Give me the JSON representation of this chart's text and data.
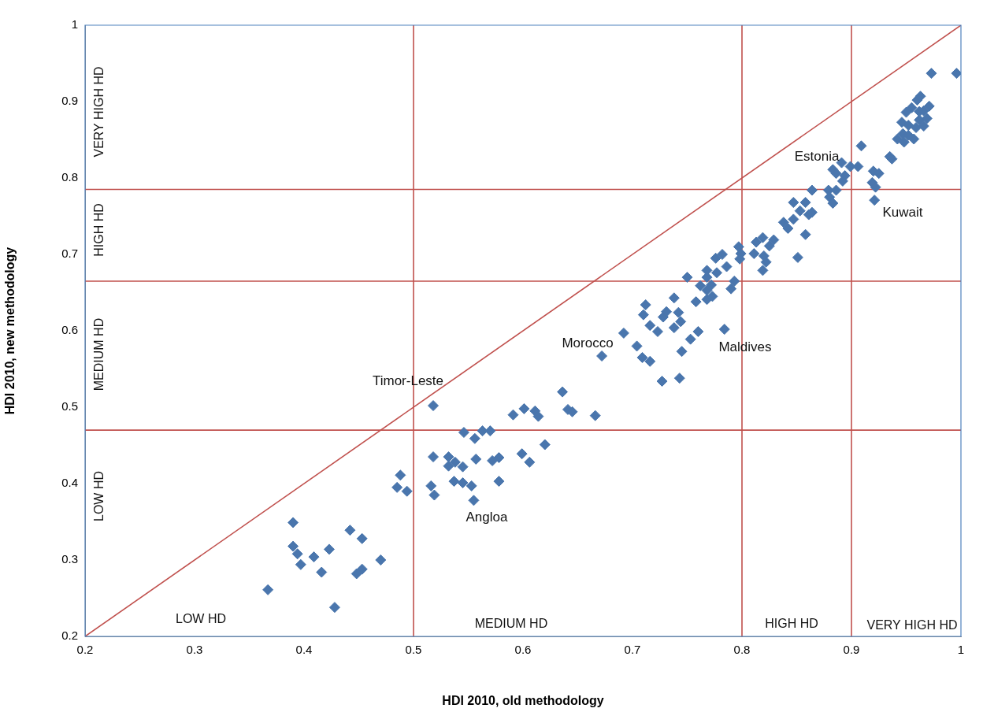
{
  "chart_data": {
    "type": "scatter",
    "xlabel": "HDI 2010, old methodology",
    "ylabel": "HDI 2010, new methodology",
    "xlim": [
      0.2,
      1
    ],
    "ylim": [
      0.2,
      1
    ],
    "xticks": [
      0.2,
      0.3,
      0.4,
      0.5,
      0.6,
      0.7,
      0.8,
      0.9,
      1
    ],
    "yticks": [
      0.2,
      0.3,
      0.4,
      0.5,
      0.6,
      0.7,
      0.8,
      0.9,
      1
    ],
    "grid": false,
    "legend": false,
    "series": [
      {
        "marker": "diamond",
        "color": "#4a76ad",
        "x": [
          0.367,
          0.39,
          0.39,
          0.394,
          0.397,
          0.409,
          0.416,
          0.423,
          0.428,
          0.442,
          0.453,
          0.448,
          0.453,
          0.47,
          0.488,
          0.485,
          0.494,
          0.518,
          0.601,
          0.591,
          0.611,
          0.614,
          0.636,
          0.641,
          0.645,
          0.666,
          0.672,
          0.546,
          0.556,
          0.563,
          0.57,
          0.62,
          0.599,
          0.606,
          0.518,
          0.532,
          0.532,
          0.538,
          0.545,
          0.557,
          0.572,
          0.578,
          0.516,
          0.519,
          0.537,
          0.545,
          0.553,
          0.578,
          0.555,
          0.692,
          0.704,
          0.709,
          0.716,
          0.727,
          0.743,
          0.745,
          0.753,
          0.76,
          0.784,
          0.712,
          0.71,
          0.716,
          0.723,
          0.728,
          0.731,
          0.738,
          0.742,
          0.744,
          0.738,
          0.758,
          0.75,
          0.762,
          0.768,
          0.768,
          0.773,
          0.772,
          0.768,
          0.768,
          0.777,
          0.776,
          0.782,
          0.786,
          0.793,
          0.79,
          0.797,
          0.799,
          0.798,
          0.811,
          0.813,
          0.819,
          0.825,
          0.829,
          0.82,
          0.819,
          0.822,
          0.851,
          0.838,
          0.847,
          0.842,
          0.858,
          0.847,
          0.858,
          0.853,
          0.861,
          0.864,
          0.864,
          0.879,
          0.886,
          0.88,
          0.883,
          0.883,
          0.886,
          0.891,
          0.894,
          0.892,
          0.899,
          0.906,
          0.909,
          0.92,
          0.925,
          0.919,
          0.922,
          0.921,
          0.935,
          0.937,
          0.942,
          0.948,
          0.947,
          0.952,
          0.957,
          0.946,
          0.952,
          0.959,
          0.966,
          0.962,
          0.969,
          0.95,
          0.955,
          0.962,
          0.966,
          0.971,
          0.96,
          0.963,
          0.973,
          0.996
        ],
        "values": [
          0.261,
          0.349,
          0.318,
          0.308,
          0.294,
          0.304,
          0.284,
          0.314,
          0.238,
          0.339,
          0.328,
          0.282,
          0.288,
          0.3,
          0.411,
          0.395,
          0.39,
          0.502,
          0.498,
          0.49,
          0.495,
          0.488,
          0.52,
          0.497,
          0.494,
          0.489,
          0.567,
          0.467,
          0.459,
          0.469,
          0.469,
          0.451,
          0.439,
          0.428,
          0.435,
          0.435,
          0.423,
          0.428,
          0.422,
          0.432,
          0.43,
          0.434,
          0.397,
          0.385,
          0.403,
          0.401,
          0.397,
          0.403,
          0.378,
          0.597,
          0.58,
          0.565,
          0.56,
          0.534,
          0.538,
          0.573,
          0.589,
          0.599,
          0.602,
          0.634,
          0.621,
          0.607,
          0.599,
          0.618,
          0.625,
          0.643,
          0.624,
          0.612,
          0.604,
          0.638,
          0.67,
          0.659,
          0.653,
          0.641,
          0.645,
          0.66,
          0.67,
          0.679,
          0.676,
          0.695,
          0.7,
          0.684,
          0.665,
          0.655,
          0.71,
          0.701,
          0.694,
          0.701,
          0.716,
          0.722,
          0.711,
          0.719,
          0.698,
          0.679,
          0.69,
          0.696,
          0.742,
          0.746,
          0.734,
          0.726,
          0.768,
          0.768,
          0.757,
          0.752,
          0.755,
          0.784,
          0.784,
          0.784,
          0.775,
          0.767,
          0.811,
          0.806,
          0.82,
          0.803,
          0.796,
          0.815,
          0.815,
          0.842,
          0.809,
          0.806,
          0.794,
          0.788,
          0.771,
          0.828,
          0.825,
          0.851,
          0.847,
          0.858,
          0.856,
          0.851,
          0.873,
          0.869,
          0.866,
          0.868,
          0.876,
          0.878,
          0.886,
          0.892,
          0.887,
          0.888,
          0.894,
          0.902,
          0.907,
          0.937,
          0.937
        ]
      },
      {
        "type": "line",
        "marker": "none",
        "color": "#c0504d",
        "x": [
          0.2,
          1
        ],
        "values": [
          0.2,
          1
        ]
      }
    ],
    "ref_lines": [
      {
        "axis": "x",
        "value": 0.5,
        "color": "#c0504d"
      },
      {
        "axis": "x",
        "value": 0.8,
        "color": "#c0504d"
      },
      {
        "axis": "x",
        "value": 0.9,
        "color": "#c0504d"
      },
      {
        "axis": "y",
        "value": 0.47,
        "color": "#c0504d"
      },
      {
        "axis": "y",
        "value": 0.665,
        "color": "#c0504d"
      },
      {
        "axis": "y",
        "value": 0.785,
        "color": "#c0504d"
      }
    ],
    "annotations": [
      "Estonia",
      "Kuwait",
      "Maldives",
      "Morocco",
      "Timor-Leste",
      "Angloa",
      "LOW HD",
      "MEDIUM HD",
      "HIGH HD",
      "VERY HIGH HD",
      "LOW HD",
      "MEDIUM HD",
      "HIGH HD",
      "VERY HIGH HD"
    ]
  }
}
